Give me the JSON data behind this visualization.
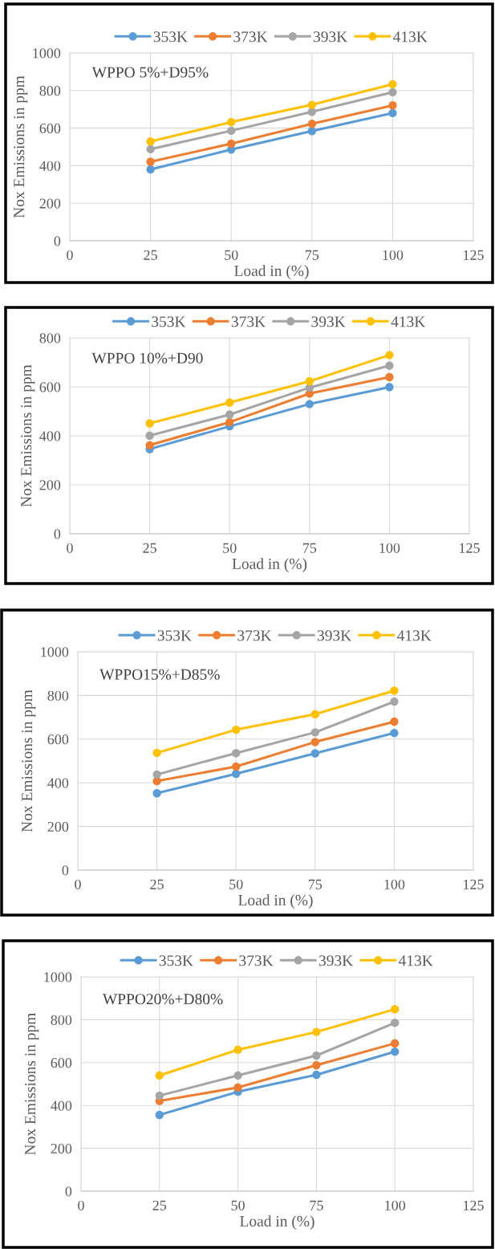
{
  "chart_data": [
    {
      "type": "line",
      "xlabel": "Load in (%)",
      "ylabel": "Nox Emissions in ppm",
      "annotations": [
        "WPPO 5%+D95%"
      ],
      "x": [
        25,
        50,
        75,
        100
      ],
      "xlim": [
        0,
        125
      ],
      "xticks": [
        0,
        25,
        50,
        75,
        100,
        125
      ],
      "ylim": [
        0,
        1000
      ],
      "yticks": [
        0,
        200,
        400,
        600,
        800,
        1000
      ],
      "grid": true,
      "legend": "top",
      "marker": "circle",
      "line_style": "solid",
      "series": [
        {
          "name": "353K",
          "color": "#5b9bd5",
          "values": [
            380,
            486,
            584,
            680
          ]
        },
        {
          "name": "373K",
          "color": "#ed7d31",
          "values": [
            421,
            517,
            623,
            721
          ]
        },
        {
          "name": "393K",
          "color": "#a5a5a5",
          "values": [
            488,
            586,
            687,
            791
          ]
        },
        {
          "name": "413K",
          "color": "#ffc000",
          "values": [
            529,
            632,
            724,
            834
          ]
        }
      ]
    },
    {
      "type": "line",
      "xlabel": "Load in (%)",
      "ylabel": "Nox Emissions in ppm",
      "annotations": [
        "WPPO 10%+D90"
      ],
      "x": [
        25,
        50,
        75,
        100
      ],
      "xlim": [
        0,
        125
      ],
      "xticks": [
        0,
        25,
        50,
        75,
        100,
        125
      ],
      "ylim": [
        0,
        800
      ],
      "yticks": [
        0,
        200,
        400,
        600,
        800
      ],
      "grid": true,
      "legend": "top",
      "marker": "circle",
      "line_style": "solid",
      "series": [
        {
          "name": "353K",
          "color": "#5b9bd5",
          "values": [
            346,
            439,
            530,
            599
          ]
        },
        {
          "name": "373K",
          "color": "#ed7d31",
          "values": [
            362,
            456,
            573,
            640
          ]
        },
        {
          "name": "393K",
          "color": "#a5a5a5",
          "values": [
            401,
            487,
            597,
            687
          ]
        },
        {
          "name": "413K",
          "color": "#ffc000",
          "values": [
            451,
            536,
            623,
            730
          ]
        }
      ]
    },
    {
      "type": "line",
      "xlabel": "Load in (%)",
      "ylabel": "Nox Emissions in ppm",
      "annotations": [
        "WPPO15%+D85%"
      ],
      "x": [
        25,
        50,
        75,
        100
      ],
      "xlim": [
        0,
        125
      ],
      "xticks": [
        0,
        25,
        50,
        75,
        100,
        125
      ],
      "ylim": [
        0,
        1000
      ],
      "yticks": [
        0,
        200,
        400,
        600,
        800,
        1000
      ],
      "grid": true,
      "legend": "top",
      "marker": "circle",
      "line_style": "solid",
      "series": [
        {
          "name": "353K",
          "color": "#5b9bd5",
          "values": [
            352,
            441,
            535,
            628
          ]
        },
        {
          "name": "373K",
          "color": "#ed7d31",
          "values": [
            408,
            474,
            587,
            680
          ]
        },
        {
          "name": "393K",
          "color": "#a5a5a5",
          "values": [
            438,
            536,
            631,
            772
          ]
        },
        {
          "name": "413K",
          "color": "#ffc000",
          "values": [
            537,
            643,
            714,
            822
          ]
        }
      ]
    },
    {
      "type": "line",
      "xlabel": "Load in (%)",
      "ylabel": "Nox Emissions in ppm",
      "annotations": [
        "WPPO20%+D80%"
      ],
      "x": [
        25,
        50,
        75,
        100
      ],
      "xlim": [
        0,
        125
      ],
      "xticks": [
        0,
        25,
        50,
        75,
        100,
        125
      ],
      "ylim": [
        0,
        1000
      ],
      "yticks": [
        0,
        200,
        400,
        600,
        800,
        1000
      ],
      "grid": true,
      "legend": "top",
      "marker": "circle",
      "line_style": "solid",
      "series": [
        {
          "name": "353K",
          "color": "#5b9bd5",
          "values": [
            356,
            464,
            543,
            651
          ]
        },
        {
          "name": "373K",
          "color": "#ed7d31",
          "values": [
            421,
            484,
            588,
            690
          ]
        },
        {
          "name": "393K",
          "color": "#a5a5a5",
          "values": [
            446,
            540,
            633,
            786
          ]
        },
        {
          "name": "413K",
          "color": "#ffc000",
          "values": [
            540,
            660,
            743,
            849
          ]
        }
      ]
    }
  ]
}
